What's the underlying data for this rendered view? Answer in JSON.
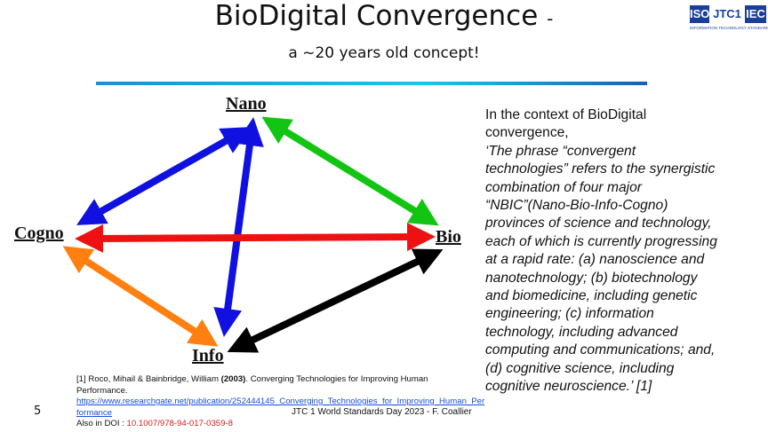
{
  "header": {
    "title": "BioDigital Convergence",
    "title_dash": "-",
    "subtitle": "a ~20 years old concept!"
  },
  "logo": {
    "iso": "ISO",
    "jtc": "JTC1",
    "iec": "IEC",
    "tagline": "INFORMATION TECHNOLOGY STANDARDS"
  },
  "diagram": {
    "nodes": [
      "Nano",
      "Bio",
      "Cogno",
      "Info"
    ]
  },
  "paragraph": {
    "lines": [
      "In the context of BioDigital",
      "convergence,"
    ],
    "quote_lines": [
      "‘The phrase “convergent",
      "technologies” refers to the synergistic",
      "combination of four major",
      "“NBIC”(Nano-Bio-Info-Cogno)",
      "provinces of science and technology,",
      "each of which is currently progressing",
      "at a rapid rate: (a) nanoscience and",
      "nanotechnology; (b) biotechnology",
      "and biomedicine, including genetic",
      "engineering; (c) information",
      "technology, including advanced",
      "computing and communications; and,",
      "(d) cognitive science, including",
      "cognitive neuroscience.’ [1]"
    ]
  },
  "reference": {
    "part1": "[1] Roco, Mihail & Bainbridge, William ",
    "year": "(2003)",
    "part2": ". Converging Technologies for Improving Human",
    "line2": "Performance.",
    "link1": "https://www.researchgate.net/publication/252444145_Converging_Technologies_for_Improving_Human_Per",
    "link2": "formance",
    "doi_label": "Also in DOI : ",
    "doi": "10.1007/978-94-017-0359-8"
  },
  "footer": {
    "text": "JTC 1 World Standards Day 2023 - F. Coallier",
    "page": "5"
  }
}
